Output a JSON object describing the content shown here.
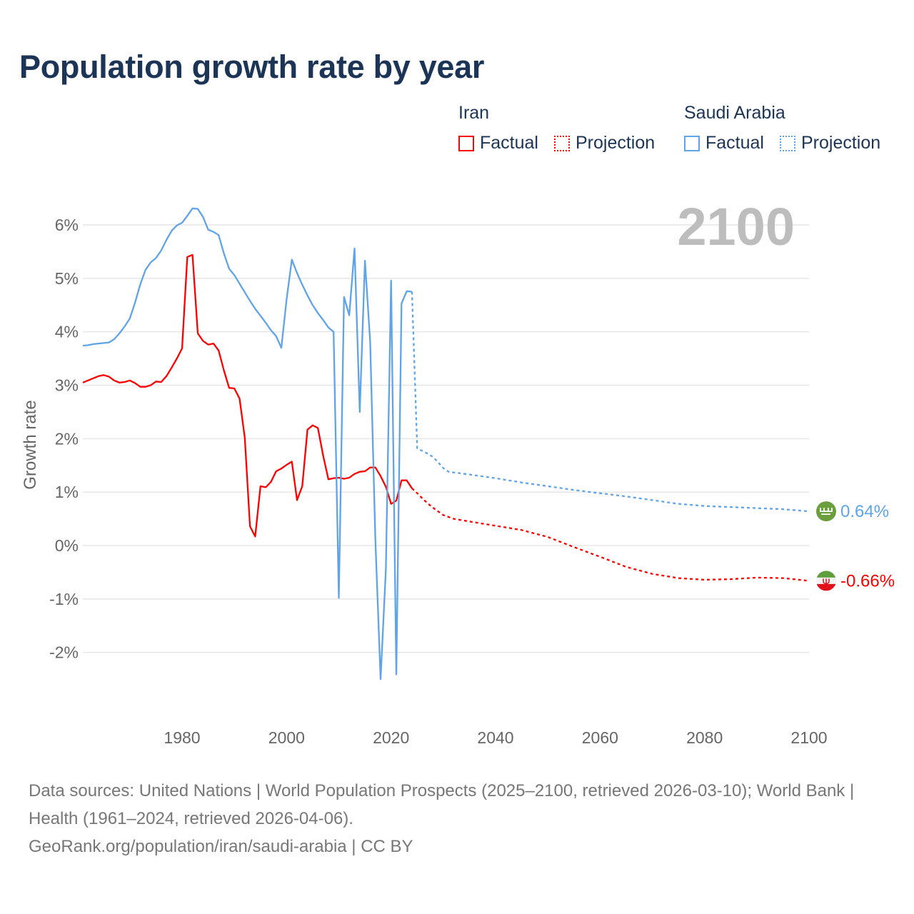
{
  "title": "Population growth rate by year",
  "legend": {
    "groups": [
      {
        "country": "Iran",
        "factual": "Factual",
        "projection": "Projection",
        "color": "#ff0000"
      },
      {
        "country": "Saudi Arabia",
        "factual": "Factual",
        "projection": "Projection",
        "color": "#5fa4e8"
      }
    ]
  },
  "footer": {
    "sources": "Data sources: United Nations | World Population Prospects (2025–2100, retrieved 2026-03-10); World Bank | Health (1961–2024, retrieved 2026-04-06).",
    "credit": "GeoRank.org/population/iran/saudi-arabia | CC BY"
  },
  "chart_data": {
    "type": "line",
    "title": "Population growth rate by year",
    "xlabel": "",
    "ylabel": "Growth rate",
    "current_year_label": "2100",
    "xlim": [
      1961,
      2100
    ],
    "ylim": [
      -3.2,
      6.7
    ],
    "x_ticks": [
      "1980",
      "2000",
      "2020",
      "2040",
      "2060",
      "2080",
      "2100"
    ],
    "x_tick_values": [
      1980,
      2000,
      2020,
      2040,
      2060,
      2080,
      2100
    ],
    "y_ticks": [
      "-2%",
      "-1%",
      "0%",
      "1%",
      "2%",
      "3%",
      "4%",
      "5%",
      "6%"
    ],
    "y_tick_values": [
      -2,
      -1,
      0,
      1,
      2,
      3,
      4,
      5,
      6
    ],
    "grid": true,
    "legend_position": "top-right",
    "series": [
      {
        "name": "Iran – Factual",
        "color": "#ff0000",
        "style": "solid",
        "x_start": 1961,
        "values": [
          3.05,
          3.09,
          3.13,
          3.17,
          3.19,
          3.16,
          3.09,
          3.05,
          3.06,
          3.09,
          3.04,
          2.97,
          2.97,
          3.0,
          3.07,
          3.06,
          3.17,
          3.33,
          3.5,
          3.69,
          5.4,
          5.44,
          3.97,
          3.83,
          3.76,
          3.78,
          3.65,
          3.28,
          2.95,
          2.94,
          2.75,
          2.02,
          0.36,
          0.17,
          1.11,
          1.09,
          1.19,
          1.39,
          1.44,
          1.51,
          1.57,
          0.85,
          1.11,
          2.17,
          2.25,
          2.2,
          1.68,
          1.24,
          1.26,
          1.27,
          1.25,
          1.27,
          1.34,
          1.38,
          1.39,
          1.46,
          1.46,
          1.3,
          1.1,
          0.78,
          0.84,
          1.22,
          1.22,
          1.07
        ]
      },
      {
        "name": "Iran – Projection",
        "color": "#ff0000",
        "style": "dotted",
        "x": [
          2024,
          2025,
          2026,
          2027,
          2028,
          2029,
          2030,
          2032,
          2035,
          2040,
          2045,
          2050,
          2055,
          2060,
          2065,
          2070,
          2075,
          2080,
          2085,
          2090,
          2095,
          2100
        ],
        "values": [
          1.07,
          0.98,
          0.88,
          0.79,
          0.71,
          0.64,
          0.57,
          0.5,
          0.45,
          0.37,
          0.29,
          0.16,
          -0.03,
          -0.21,
          -0.4,
          -0.53,
          -0.61,
          -0.64,
          -0.63,
          -0.6,
          -0.61,
          -0.66
        ]
      },
      {
        "name": "Saudi Arabia – Factual",
        "color": "#5fa4e8",
        "style": "solid",
        "x_start": 1961,
        "values": [
          3.74,
          3.75,
          3.77,
          3.78,
          3.79,
          3.8,
          3.86,
          3.97,
          4.1,
          4.25,
          4.55,
          4.89,
          5.16,
          5.3,
          5.38,
          5.52,
          5.72,
          5.89,
          5.99,
          6.04,
          6.17,
          6.31,
          6.3,
          6.15,
          5.91,
          5.87,
          5.81,
          5.47,
          5.18,
          5.06,
          4.9,
          4.74,
          4.58,
          4.43,
          4.3,
          4.17,
          4.03,
          3.92,
          3.7,
          4.6,
          5.35,
          5.1,
          4.88,
          4.68,
          4.5,
          4.35,
          4.22,
          4.08,
          4.0,
          -0.98,
          4.65,
          4.31,
          5.56,
          2.5,
          5.33,
          3.82,
          0.1,
          -2.5,
          -0.44,
          4.96,
          -2.41,
          4.53,
          4.76,
          4.75
        ]
      },
      {
        "name": "Saudi Arabia – Projection",
        "color": "#5fa4e8",
        "style": "dotted",
        "x": [
          2024,
          2025,
          2026,
          2027,
          2028,
          2029,
          2030,
          2031,
          2035,
          2040,
          2045,
          2050,
          2055,
          2060,
          2065,
          2070,
          2075,
          2080,
          2085,
          2090,
          2095,
          2100
        ],
        "values": [
          4.75,
          1.82,
          1.77,
          1.72,
          1.66,
          1.56,
          1.45,
          1.38,
          1.33,
          1.26,
          1.18,
          1.11,
          1.04,
          0.98,
          0.92,
          0.85,
          0.78,
          0.74,
          0.72,
          0.7,
          0.68,
          0.64
        ]
      }
    ],
    "end_labels": [
      {
        "country": "Saudi Arabia",
        "text": "0.64%",
        "value": 0.64,
        "color": "#5fa4e8",
        "flag": "saudi-flag-icon"
      },
      {
        "country": "Iran",
        "text": "-0.66%",
        "value": -0.66,
        "color": "#ff0000",
        "flag": "iran-flag-icon"
      }
    ]
  }
}
